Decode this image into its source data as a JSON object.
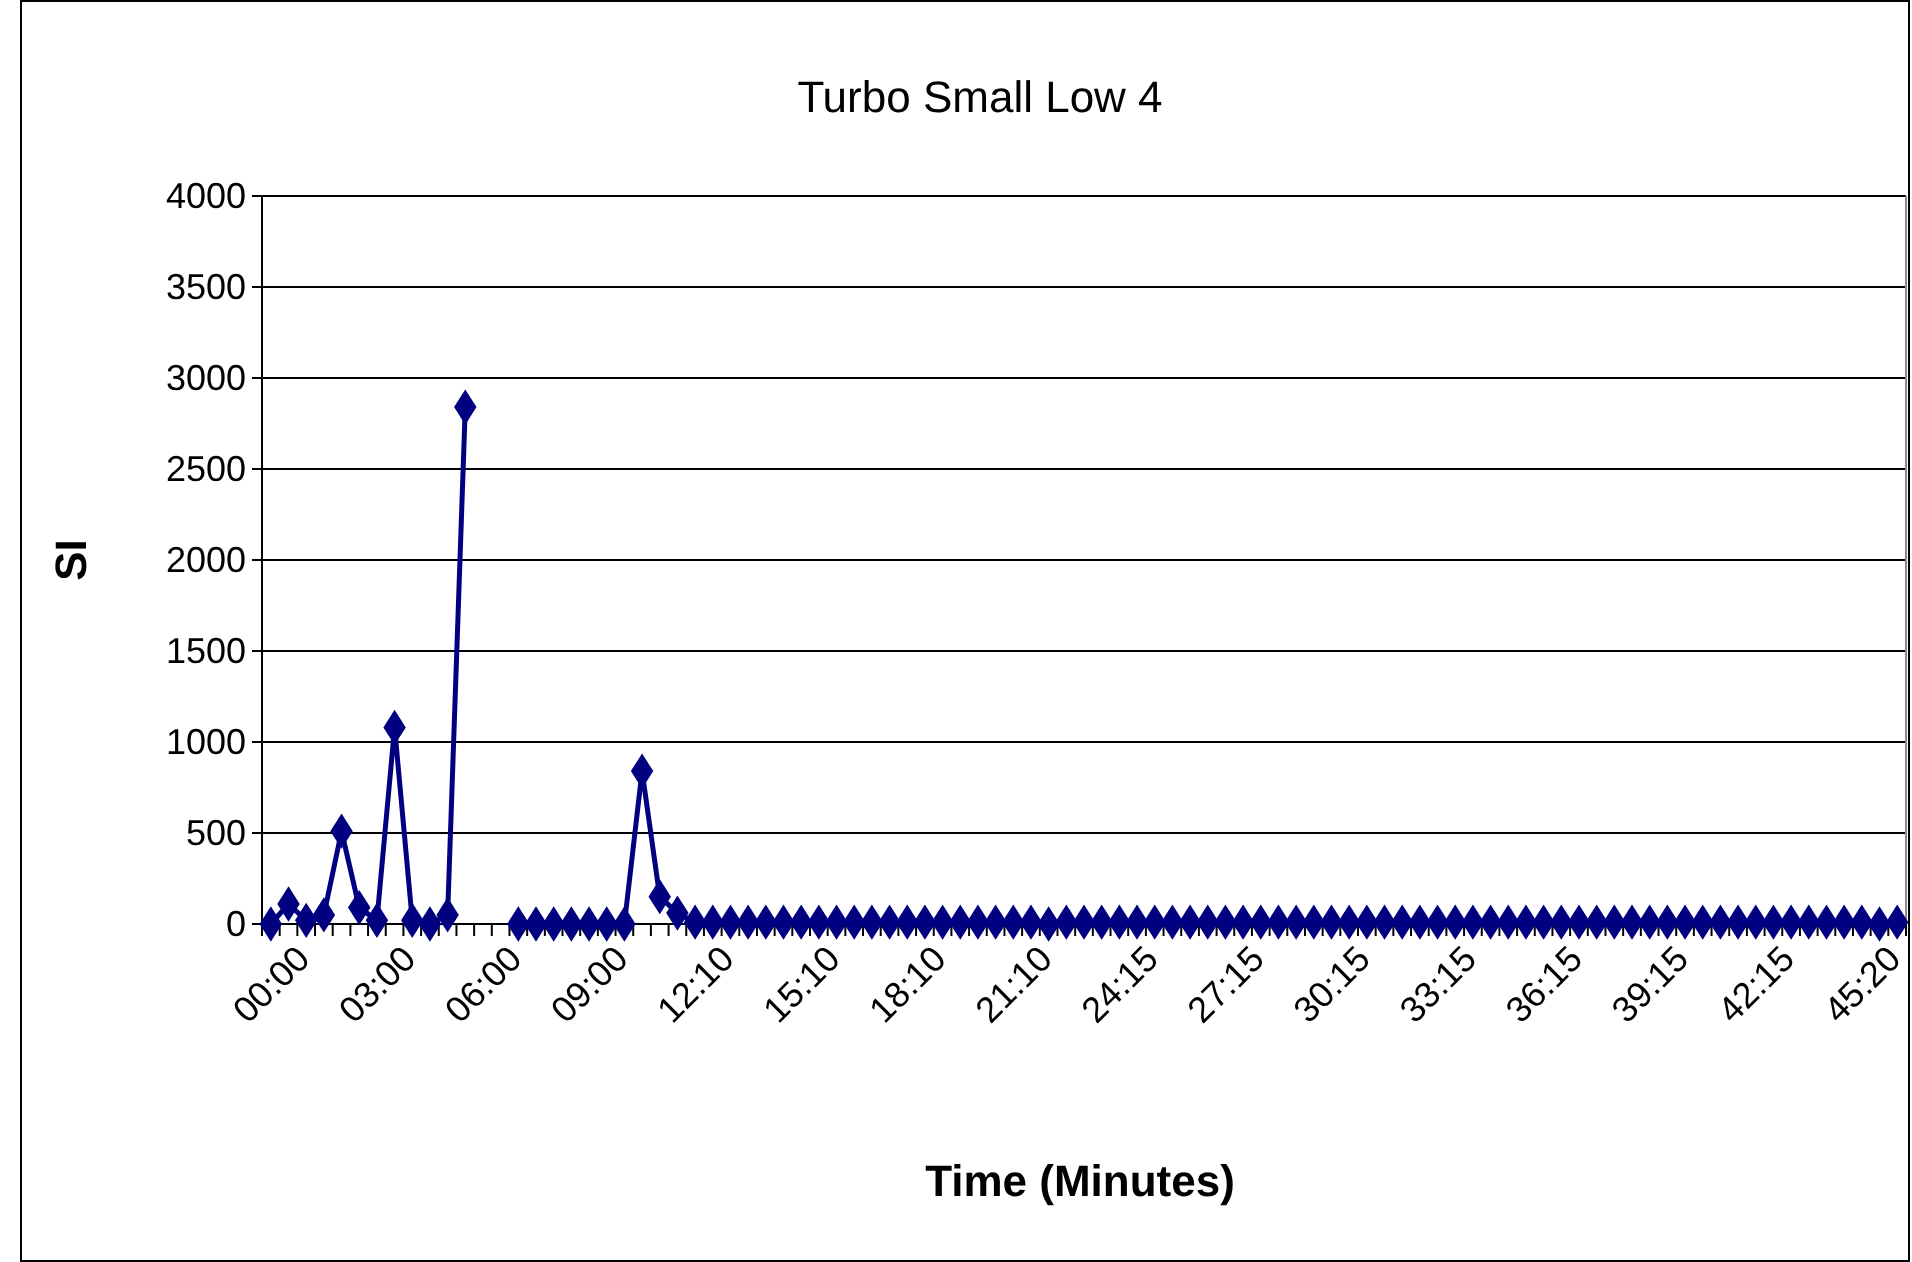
{
  "chart_data": {
    "type": "line",
    "title": "Turbo Small Low 4",
    "xlabel": "Time (Minutes)",
    "ylabel": "SI",
    "categories": [
      "00:00",
      null,
      null,
      null,
      null,
      null,
      "03:00",
      null,
      null,
      null,
      null,
      null,
      "06:00",
      null,
      null,
      null,
      null,
      null,
      "09:00",
      null,
      null,
      null,
      null,
      null,
      "12:10",
      null,
      null,
      null,
      null,
      null,
      "15:10",
      null,
      null,
      null,
      null,
      null,
      "18:10",
      null,
      null,
      null,
      null,
      null,
      "21:10",
      null,
      null,
      null,
      null,
      null,
      "24:15",
      null,
      null,
      null,
      null,
      null,
      "27:15",
      null,
      null,
      null,
      null,
      null,
      "30:15",
      null,
      null,
      null,
      null,
      null,
      "33:15",
      null,
      null,
      null,
      null,
      null,
      "36:15",
      null,
      null,
      null,
      null,
      null,
      "39:15",
      null,
      null,
      null,
      null,
      null,
      "42:15",
      null,
      null,
      null,
      null,
      null,
      "45:20",
      null,
      null
    ],
    "series": [
      {
        "color": "#000080",
        "values": [
          0,
          110,
          20,
          50,
          510,
          90,
          20,
          1080,
          20,
          0,
          50,
          2840,
          null,
          null,
          0,
          0,
          0,
          0,
          0,
          0,
          0,
          840,
          150,
          60,
          10,
          10,
          10,
          10,
          10,
          10,
          10,
          10,
          10,
          10,
          10,
          10,
          10,
          10,
          10,
          10,
          10,
          10,
          10,
          10,
          0,
          10,
          10,
          10,
          10,
          10,
          10,
          10,
          10,
          10,
          10,
          10,
          10,
          10,
          10,
          10,
          10,
          10,
          10,
          10,
          10,
          10,
          10,
          10,
          10,
          10,
          10,
          10,
          10,
          10,
          10,
          10,
          10,
          10,
          10,
          10,
          10,
          10,
          10,
          10,
          10,
          10,
          10,
          10,
          10,
          10,
          10,
          0,
          10
        ]
      }
    ],
    "ylim": [
      0,
      4000
    ],
    "yticks": [
      0,
      500,
      1000,
      1500,
      2000,
      2500,
      3000,
      3500,
      4000
    ],
    "grid": "y",
    "marker": "diamond"
  }
}
